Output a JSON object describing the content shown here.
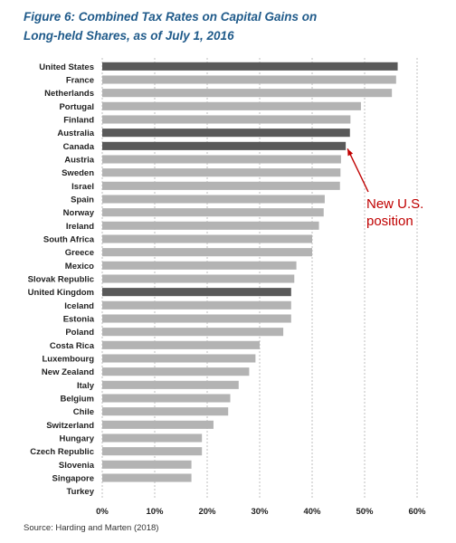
{
  "figure": {
    "title_line1": "Figure 6: Combined Tax Rates on Capital Gains on",
    "title_line2": "Long-held Shares, as of July 1, 2016",
    "source": "Source: Harding and Marten (2018)"
  },
  "chart_data": {
    "type": "bar",
    "orientation": "horizontal",
    "categories": [
      "United States",
      "France",
      "Netherlands",
      "Portugal",
      "Finland",
      "Australia",
      "Canada",
      "Austria",
      "Sweden",
      "Israel",
      "Spain",
      "Norway",
      "Ireland",
      "South Africa",
      "Greece",
      "Mexico",
      "Slovak Republic",
      "United Kingdom",
      "Iceland",
      "Estonia",
      "Poland",
      "Costa Rica",
      "Luxembourg",
      "New Zealand",
      "Italy",
      "Belgium",
      "Chile",
      "Switzerland",
      "Hungary",
      "Czech Republic",
      "Slovenia",
      "Singapore",
      "Turkey"
    ],
    "values": [
      56.3,
      56.0,
      55.2,
      49.3,
      47.3,
      47.2,
      46.4,
      45.5,
      45.4,
      45.3,
      42.4,
      42.2,
      41.3,
      40.0,
      40.0,
      37.0,
      36.6,
      36.0,
      36.0,
      36.0,
      34.5,
      30.0,
      29.2,
      28.0,
      26.0,
      24.4,
      24.0,
      21.2,
      19.0,
      19.0,
      17.0,
      17.0,
      0.0
    ],
    "highlighted": [
      "United States",
      "Australia",
      "Canada",
      "United Kingdom"
    ],
    "xlim": [
      0,
      60
    ],
    "xticks": [
      "0%",
      "10%",
      "20%",
      "30%",
      "40%",
      "50%",
      "60%"
    ],
    "grid": "vertical dashed",
    "colors": {
      "bar": "#b3b3b3",
      "highlight": "#595959",
      "grid": "#bfbfbf",
      "annotation": "#c00000"
    },
    "annotation": {
      "line1": "New U.S.",
      "line2": "position",
      "points_to": "Canada"
    }
  }
}
